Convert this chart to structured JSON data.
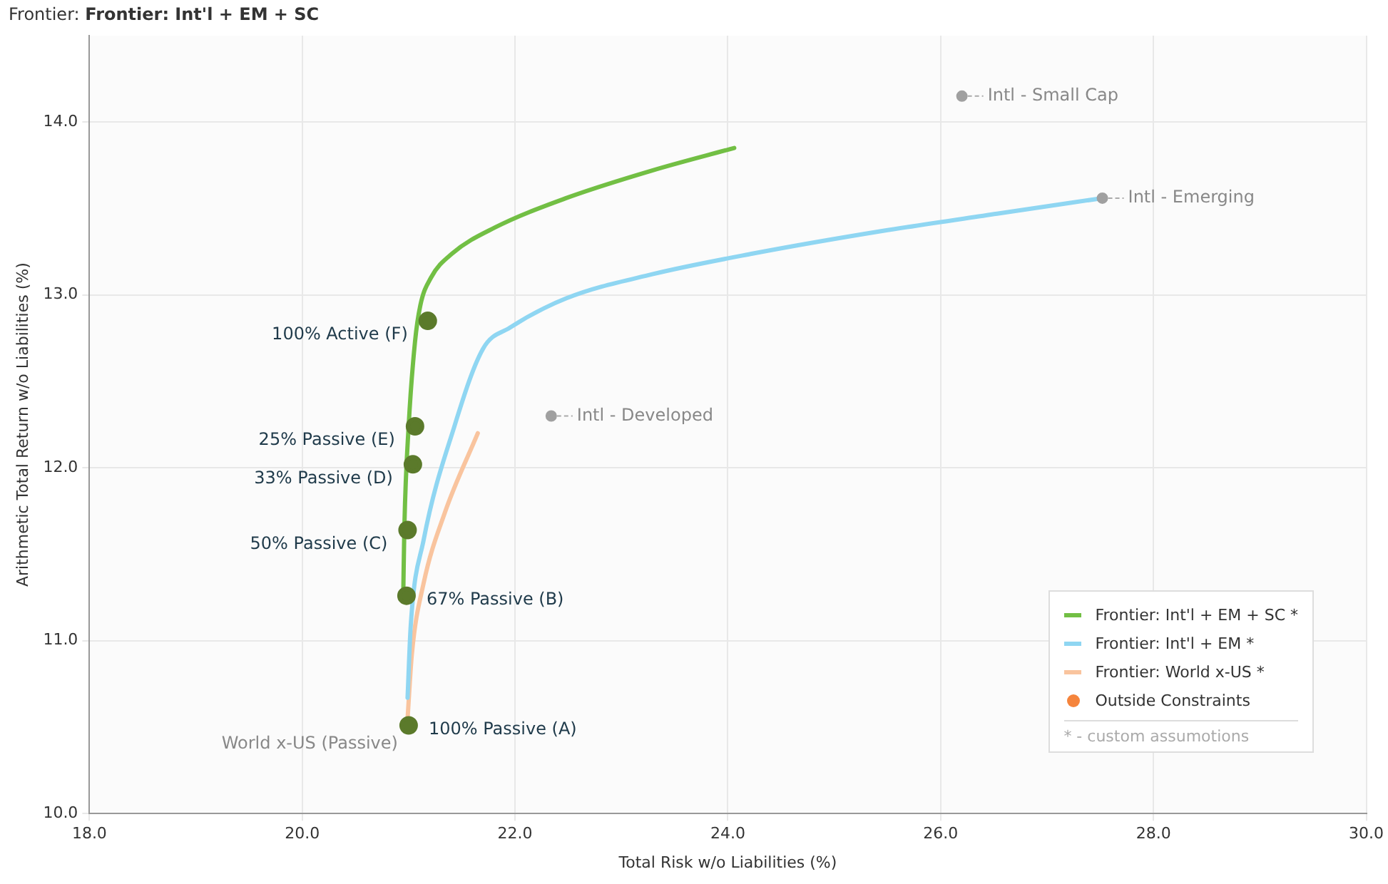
{
  "chart_data": {
    "type": "line",
    "title": "Frontier:",
    "subtitle": "Frontier: Int'l + EM + SC",
    "xlabel": "Total Risk w/o Liabilities (%)",
    "ylabel": "Arithmetic Total Return w/o Liabilities (%)",
    "xlim": [
      18,
      30
    ],
    "xticks": [
      {
        "value": 18,
        "label": "18.0"
      },
      {
        "value": 20,
        "label": "20.0"
      },
      {
        "value": 22,
        "label": "22.0"
      },
      {
        "value": 24,
        "label": "24.0"
      },
      {
        "value": 26,
        "label": "26.0"
      },
      {
        "value": 28,
        "label": "28.0"
      },
      {
        "value": 30,
        "label": "30.0"
      }
    ],
    "ylim": [
      10,
      14.5
    ],
    "yticks": [
      {
        "value": 10,
        "label": "10.0"
      },
      {
        "value": 11,
        "label": "11.0"
      },
      {
        "value": 12,
        "label": "12.0"
      },
      {
        "value": 13,
        "label": "13.0"
      },
      {
        "value": 14,
        "label": "14.0"
      }
    ],
    "grid": true,
    "legend": "bottom right",
    "marker": "none",
    "line_style": "solid",
    "series": [
      {
        "name": "Frontier: Int'l + EM + SC *",
        "color": "#72bf44",
        "x": [
          20.95,
          20.96,
          21.0,
          21.06,
          21.11,
          21.21,
          21.41,
          21.81,
          22.48,
          23.29,
          24.06
        ],
        "values": [
          11.29,
          11.66,
          12.24,
          12.73,
          12.94,
          13.1,
          13.24,
          13.39,
          13.56,
          13.72,
          13.85
        ]
      },
      {
        "name": "Frontier: Int'l + EM *",
        "color": "#8fd6f2",
        "x": [
          20.99,
          21.02,
          21.14,
          21.43,
          21.7,
          21.95,
          22.48,
          23.29,
          24.24,
          25.45,
          26.53,
          27.52
        ],
        "values": [
          10.67,
          11.09,
          11.58,
          12.24,
          12.69,
          12.81,
          12.98,
          13.12,
          13.24,
          13.37,
          13.47,
          13.56
        ]
      },
      {
        "name": "Frontier: World x-US *",
        "color": "#f9c49e",
        "x": [
          20.99,
          21.03,
          21.14,
          21.34,
          21.65
        ],
        "values": [
          10.55,
          10.92,
          11.33,
          11.74,
          12.2
        ]
      },
      {
        "name": "Outside Constraints",
        "type": "scatter",
        "marker": "circle",
        "color": "#f5843c"
      },
      {
        "type": "scatter",
        "marker": "circle",
        "color": "#5b7a2b",
        "x": [
          21.18,
          21.06,
          21.04,
          20.99,
          20.98,
          21.0
        ],
        "values": [
          12.85,
          12.24,
          12.02,
          11.64,
          11.26,
          10.51
        ]
      },
      {
        "type": "scatter",
        "marker": "circle",
        "color": "#a0a0a0",
        "x": [
          26.2,
          27.52,
          22.34
        ],
        "values": [
          14.15,
          13.56,
          12.3
        ]
      }
    ],
    "annotations": [
      {
        "text": "100% Active (F)",
        "x": 21.18,
        "y": 12.85
      },
      {
        "text": "25% Passive (E)",
        "x": 21.06,
        "y": 12.24
      },
      {
        "text": "33% Passive (D)",
        "x": 21.04,
        "y": 12.02
      },
      {
        "text": "50% Passive (C)",
        "x": 20.99,
        "y": 11.64
      },
      {
        "text": "67% Passive (B)",
        "x": 20.98,
        "y": 11.26
      },
      {
        "text": "100% Passive (A)",
        "x": 21.0,
        "y": 10.51
      },
      {
        "text": "Intl - Small Cap",
        "x": 26.2,
        "y": 14.15
      },
      {
        "text": "Intl - Emerging",
        "x": 27.52,
        "y": 13.56
      },
      {
        "text": "Intl - Developed",
        "x": 22.34,
        "y": 12.3
      },
      {
        "text": "World x-US (Passive)",
        "x": 20.98,
        "y": 10.45
      },
      "* - custom assumotions"
    ]
  }
}
